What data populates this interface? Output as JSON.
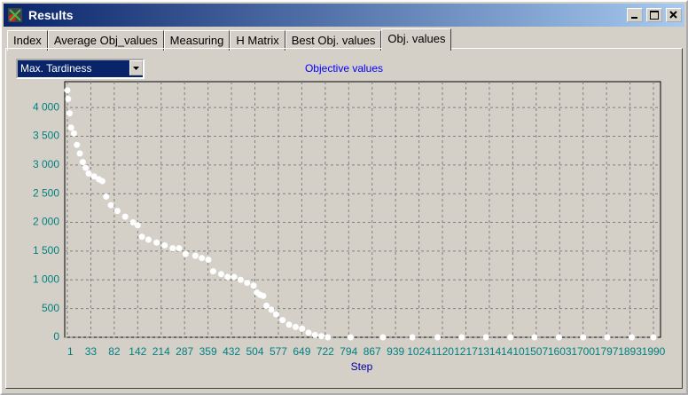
{
  "window": {
    "title": "Results",
    "tabs": [
      "Index",
      "Average Obj_values",
      "Measuring",
      "H Matrix",
      "Best Obj. values",
      "Obj. values"
    ],
    "selected_tab": 5,
    "dropdown": "Max. Tardiness"
  },
  "chart_data": {
    "type": "scatter",
    "title": "Objective values",
    "x_label": "Step",
    "color": "#ffffff",
    "grid": true,
    "x": [
      1,
      2,
      4,
      6,
      10,
      14,
      18,
      22,
      26,
      30,
      40,
      50,
      57,
      65,
      75,
      90,
      110,
      130,
      142,
      155,
      175,
      200,
      225,
      250,
      270,
      290,
      320,
      340,
      360,
      375,
      400,
      420,
      440,
      460,
      480,
      500,
      510,
      520,
      530,
      540,
      555,
      570,
      590,
      610,
      630,
      650,
      670,
      690,
      710,
      730,
      800,
      900,
      1000,
      1100,
      1200,
      1300,
      1400,
      1500,
      1600,
      1700,
      1800,
      1900,
      1990
    ],
    "values": [
      4300,
      4150,
      3900,
      3650,
      3550,
      3350,
      3200,
      3050,
      2950,
      2850,
      2800,
      2750,
      2720,
      2450,
      2300,
      2200,
      2100,
      2000,
      1950,
      1750,
      1700,
      1650,
      1600,
      1550,
      1550,
      1450,
      1420,
      1380,
      1350,
      1150,
      1100,
      1050,
      1050,
      1000,
      950,
      900,
      780,
      740,
      720,
      550,
      480,
      400,
      300,
      220,
      180,
      150,
      80,
      40,
      20,
      0,
      0,
      0,
      0,
      0,
      0,
      0,
      0,
      0,
      0,
      0,
      0,
      0,
      0
    ],
    "xticks": [
      1,
      33,
      82,
      142,
      214,
      287,
      359,
      432,
      504,
      577,
      649,
      722,
      794,
      867,
      939,
      1024,
      1120,
      1217,
      1314,
      1410,
      1507,
      1603,
      1700,
      1797,
      1893,
      1990
    ],
    "xlim": [
      1,
      1990
    ],
    "ylim": [
      0,
      4450
    ],
    "yticks": [
      0,
      {
        "value": 500,
        "label": "500"
      },
      {
        "value": 1000,
        "label": "1 000"
      },
      {
        "value": 1500,
        "label": "1 500"
      },
      {
        "value": 2000,
        "label": "2 000"
      },
      {
        "value": 2500,
        "label": "2 500"
      },
      {
        "value": 3000,
        "label": "3 000"
      },
      {
        "value": 3500,
        "label": "3 500"
      },
      {
        "value": 4000,
        "label": "4 000"
      }
    ]
  }
}
